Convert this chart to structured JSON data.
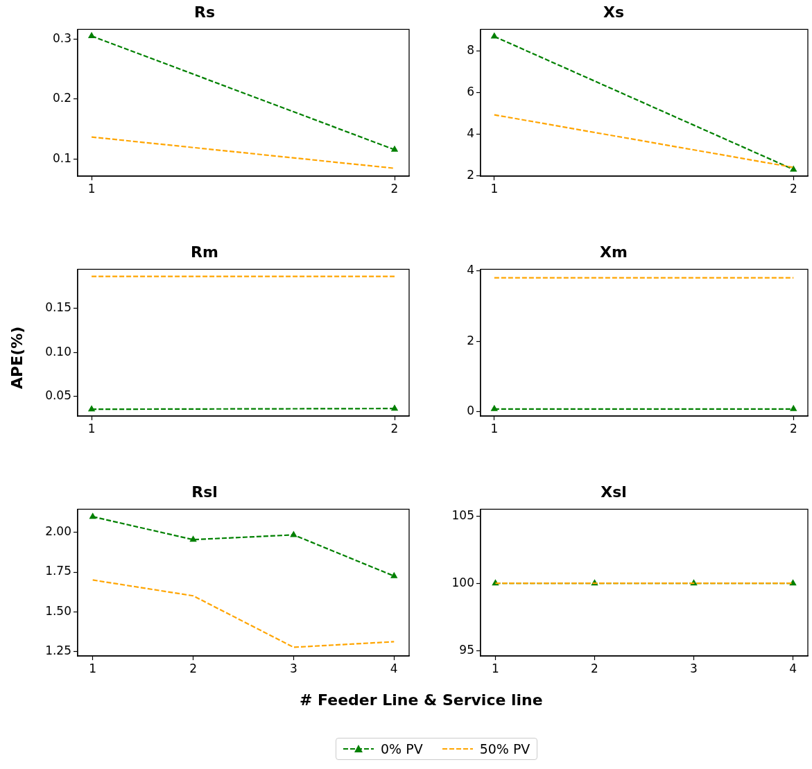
{
  "chart_data": [
    {
      "type": "line",
      "title": "Rs",
      "x": [
        1,
        2
      ],
      "xlim": [
        0.954,
        2.048
      ],
      "xticks": [
        1,
        2
      ],
      "ylim": [
        0.072,
        0.316
      ],
      "yticks": [
        0.1,
        0.2,
        0.3
      ],
      "grid": false,
      "line_style": "dashed",
      "series": [
        {
          "color": "#008000",
          "marker": "triangle",
          "values": [
            0.305,
            0.116
          ]
        },
        {
          "color": "#ffa500",
          "marker": "none",
          "values": [
            0.137,
            0.085
          ]
        }
      ]
    },
    {
      "type": "line",
      "title": "Xs",
      "x": [
        1,
        2
      ],
      "xlim": [
        0.954,
        2.048
      ],
      "xticks": [
        1,
        2
      ],
      "ylim": [
        1.98,
        9.04
      ],
      "yticks": [
        2,
        4,
        6,
        8
      ],
      "grid": false,
      "line_style": "dashed",
      "series": [
        {
          "color": "#008000",
          "marker": "triangle",
          "values": [
            8.7,
            2.3
          ]
        },
        {
          "color": "#ffa500",
          "marker": "none",
          "values": [
            4.93,
            2.4
          ]
        }
      ]
    },
    {
      "type": "line",
      "title": "Rm",
      "ylabel": "APE(%)",
      "x": [
        1,
        2
      ],
      "xlim": [
        0.954,
        2.048
      ],
      "xticks": [
        1,
        2
      ],
      "ylim": [
        0.028,
        0.194
      ],
      "yticks": [
        0.05,
        {
          "value": 0.1,
          "label": "0.10"
        },
        0.15
      ],
      "grid": false,
      "line_style": "dashed",
      "series": [
        {
          "color": "#008000",
          "marker": "triangle",
          "values": [
            0.0357,
            0.0365
          ]
        },
        {
          "color": "#ffa500",
          "marker": "none",
          "values": [
            0.186,
            0.186
          ]
        }
      ]
    },
    {
      "type": "line",
      "title": "Xm",
      "x": [
        1,
        2
      ],
      "xlim": [
        0.954,
        2.048
      ],
      "xticks": [
        1,
        2
      ],
      "ylim": [
        -0.12,
        4.04
      ],
      "yticks": [
        0,
        2,
        4
      ],
      "grid": false,
      "line_style": "dashed",
      "series": [
        {
          "color": "#008000",
          "marker": "triangle",
          "values": [
            0.08,
            0.08
          ]
        },
        {
          "color": "#ffa500",
          "marker": "none",
          "values": [
            3.8,
            3.8
          ]
        }
      ]
    },
    {
      "type": "line",
      "title": "Rsl",
      "xlabel": "# Feeder Line & Service line",
      "x": [
        1,
        2,
        3,
        4
      ],
      "xlim": [
        0.85,
        4.15
      ],
      "xticks": [
        1,
        2,
        3,
        4
      ],
      "ylim": [
        1.22,
        2.147
      ],
      "yticks": [
        {
          "value": 1.25,
          "label": "1.25"
        },
        {
          "value": 1.5,
          "label": "1.50"
        },
        {
          "value": 1.75,
          "label": "1.75"
        },
        {
          "value": 2,
          "label": "2.00"
        }
      ],
      "grid": false,
      "line_style": "dashed",
      "series": [
        {
          "color": "#008000",
          "marker": "triangle",
          "values": [
            2.1,
            1.955,
            1.985,
            1.725
          ]
        },
        {
          "color": "#ffa500",
          "marker": "none",
          "values": [
            1.7,
            1.6,
            1.275,
            1.31
          ]
        }
      ]
    },
    {
      "type": "line",
      "title": "Xsl",
      "x": [
        1,
        2,
        3,
        4
      ],
      "xlim": [
        0.85,
        4.15
      ],
      "xticks": [
        1,
        2,
        3,
        4
      ],
      "ylim": [
        94.6,
        105.5
      ],
      "yticks": [
        95,
        100,
        105
      ],
      "grid": false,
      "line_style": "dashed",
      "legend": "bottom",
      "series": [
        {
          "name": "0% PV",
          "color": "#008000",
          "marker": "triangle",
          "values": [
            100,
            100,
            100,
            100
          ]
        },
        {
          "name": "50% PV",
          "color": "#ffa500",
          "marker": "none",
          "values": [
            100,
            100,
            100,
            100
          ]
        }
      ]
    }
  ]
}
